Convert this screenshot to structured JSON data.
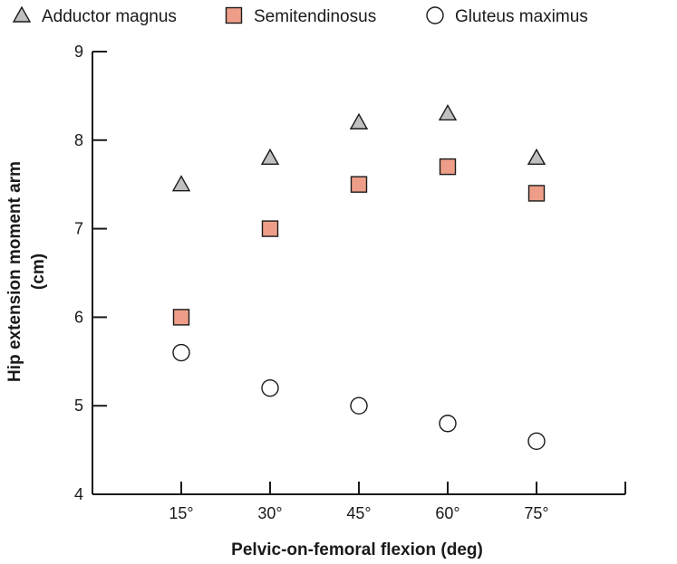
{
  "chart_data": {
    "type": "scatter",
    "title": "",
    "xlabel": "Pelvic-on-femoral flexion (deg)",
    "ylabel": "Hip extension moment arm",
    "ylabel_unit": "(cm)",
    "categories": [
      "15°",
      "30°",
      "45°",
      "60°",
      "75°"
    ],
    "x_values": [
      15,
      30,
      45,
      60,
      75
    ],
    "xlim": [
      0,
      90
    ],
    "ylim": [
      4,
      9
    ],
    "yticks": [
      "4",
      "5",
      "6",
      "7",
      "8",
      "9"
    ],
    "grid": false,
    "legend_position": "top",
    "series": [
      {
        "name": "Adductor magnus",
        "marker": "triangle",
        "color": "#c0c0c0",
        "values": [
          7.5,
          7.8,
          8.2,
          8.3,
          7.8
        ]
      },
      {
        "name": "Semitendinosus",
        "marker": "square",
        "color": "#ee9e88",
        "values": [
          6.0,
          7.0,
          7.5,
          7.7,
          7.4
        ]
      },
      {
        "name": "Gluteus maximus",
        "marker": "circle",
        "color": "#ffffff",
        "values": [
          5.6,
          5.2,
          5.0,
          4.8,
          4.6
        ]
      }
    ]
  }
}
